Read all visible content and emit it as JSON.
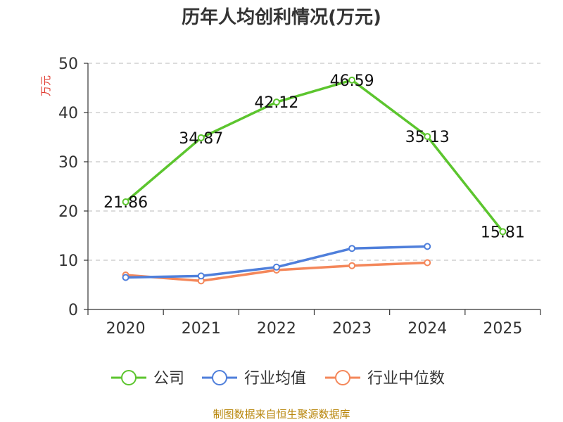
{
  "chart_data": {
    "type": "line",
    "title": "历年人均创利情况(万元)",
    "ylabel": "万元",
    "xlabel": "",
    "categories": [
      "2020",
      "2021",
      "2022",
      "2023",
      "2024",
      "2025"
    ],
    "ylim": [
      0,
      50
    ],
    "yticks": [
      0,
      10,
      20,
      30,
      40,
      50
    ],
    "grid": true,
    "legend_position": "bottom",
    "series": [
      {
        "name": "公司",
        "color": "#5cc52e",
        "values": [
          21.86,
          34.87,
          42.12,
          46.59,
          35.13,
          15.81
        ],
        "labels": [
          "21.86",
          "34.87",
          "42.12",
          "46.59",
          "35.13",
          "15.81"
        ]
      },
      {
        "name": "行业均值",
        "color": "#4f7fdb",
        "values": [
          6.5,
          6.8,
          8.6,
          12.4,
          12.8,
          null
        ]
      },
      {
        "name": "行业中位数",
        "color": "#f4875a",
        "values": [
          7.0,
          5.8,
          8.0,
          8.9,
          9.5,
          null
        ]
      }
    ]
  },
  "footer": {
    "source": "制图数据来自恒生聚源数据库"
  }
}
